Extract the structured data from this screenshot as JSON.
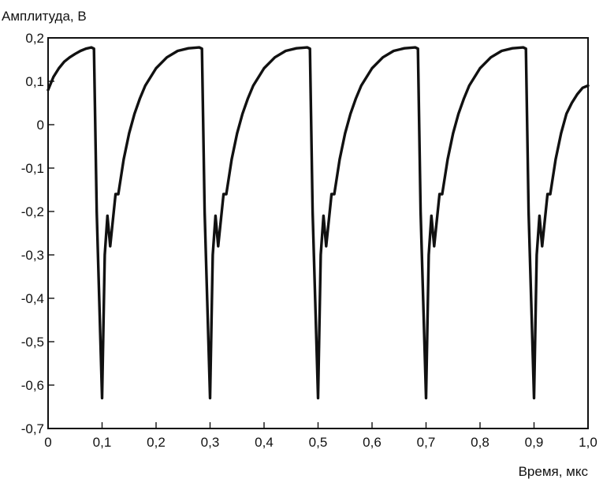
{
  "chart_data": {
    "type": "line",
    "xlabel": "Время, мкс",
    "ylabel": "Амплитуда, В",
    "xlim": [
      0,
      1.0
    ],
    "ylim": [
      -0.7,
      0.2
    ],
    "x_ticks": [
      "0",
      "0,1",
      "0,2",
      "0,3",
      "0,4",
      "0,5",
      "0,6",
      "0,7",
      "0,8",
      "0,9",
      "1,0"
    ],
    "y_ticks": [
      "0,2",
      "0,1",
      "0",
      "-0,1",
      "-0,2",
      "-0,3",
      "-0,4",
      "-0,5",
      "-0,6",
      "-0,7"
    ],
    "grid": false,
    "series": [
      {
        "x": [
          0,
          0.01,
          0.02,
          0.03,
          0.04,
          0.05,
          0.06,
          0.07,
          0.08,
          0.085,
          0.09,
          0.1,
          0.105,
          0.11,
          0.115,
          0.12,
          0.125,
          0.13,
          0.14,
          0.15,
          0.16,
          0.17,
          0.18,
          0.2,
          0.22,
          0.24,
          0.26,
          0.28,
          0.285,
          0.29,
          0.3,
          0.305,
          0.31,
          0.315,
          0.32,
          0.325,
          0.33,
          0.34,
          0.35,
          0.36,
          0.37,
          0.38,
          0.4,
          0.42,
          0.44,
          0.46,
          0.48,
          0.485,
          0.49,
          0.5,
          0.505,
          0.51,
          0.515,
          0.52,
          0.525,
          0.53,
          0.54,
          0.55,
          0.56,
          0.57,
          0.58,
          0.6,
          0.62,
          0.64,
          0.66,
          0.68,
          0.685,
          0.69,
          0.7,
          0.705,
          0.71,
          0.715,
          0.72,
          0.725,
          0.73,
          0.74,
          0.75,
          0.76,
          0.77,
          0.78,
          0.8,
          0.82,
          0.84,
          0.86,
          0.88,
          0.885,
          0.89,
          0.9,
          0.905,
          0.91,
          0.915,
          0.92,
          0.925,
          0.93,
          0.94,
          0.95,
          0.96,
          0.97,
          0.98,
          0.99,
          1.0
        ],
        "y": [
          0.08,
          0.11,
          0.13,
          0.145,
          0.155,
          0.163,
          0.17,
          0.175,
          0.178,
          0.175,
          -0.2,
          -0.63,
          -0.3,
          -0.21,
          -0.28,
          -0.22,
          -0.16,
          -0.16,
          -0.08,
          -0.02,
          0.025,
          0.06,
          0.09,
          0.13,
          0.155,
          0.17,
          0.176,
          0.178,
          0.175,
          -0.2,
          -0.63,
          -0.3,
          -0.21,
          -0.28,
          -0.22,
          -0.16,
          -0.16,
          -0.08,
          -0.02,
          0.025,
          0.06,
          0.09,
          0.13,
          0.155,
          0.17,
          0.176,
          0.178,
          0.175,
          -0.2,
          -0.63,
          -0.3,
          -0.21,
          -0.28,
          -0.22,
          -0.16,
          -0.16,
          -0.08,
          -0.02,
          0.025,
          0.06,
          0.09,
          0.13,
          0.155,
          0.17,
          0.176,
          0.178,
          0.175,
          -0.2,
          -0.63,
          -0.3,
          -0.21,
          -0.28,
          -0.22,
          -0.16,
          -0.16,
          -0.08,
          -0.02,
          0.025,
          0.06,
          0.09,
          0.13,
          0.155,
          0.17,
          0.176,
          0.178,
          0.175,
          -0.2,
          -0.63,
          -0.3,
          -0.21,
          -0.28,
          -0.22,
          -0.16,
          -0.16,
          -0.08,
          -0.02,
          0.025,
          0.05,
          0.07,
          0.085,
          0.09
        ]
      }
    ]
  }
}
